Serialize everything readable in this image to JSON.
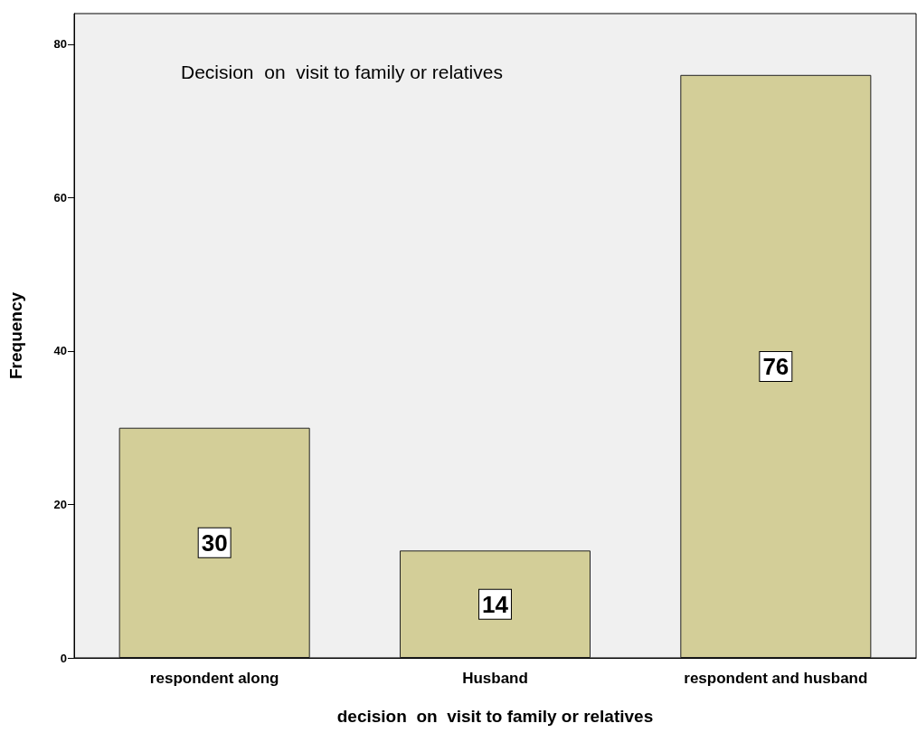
{
  "chart_data": {
    "type": "bar",
    "title": "Decision  on  visit to family or relatives",
    "xlabel": "decision  on  visit to family or relatives",
    "ylabel": "Frequency",
    "categories": [
      "respondent along",
      "Husband",
      "respondent and husband"
    ],
    "values": [
      30,
      14,
      76
    ],
    "color": "#d3ce98",
    "ylim": [
      0,
      84
    ],
    "yticks": [
      0,
      20,
      40,
      60,
      80
    ],
    "grid": false,
    "data_labels": true
  }
}
